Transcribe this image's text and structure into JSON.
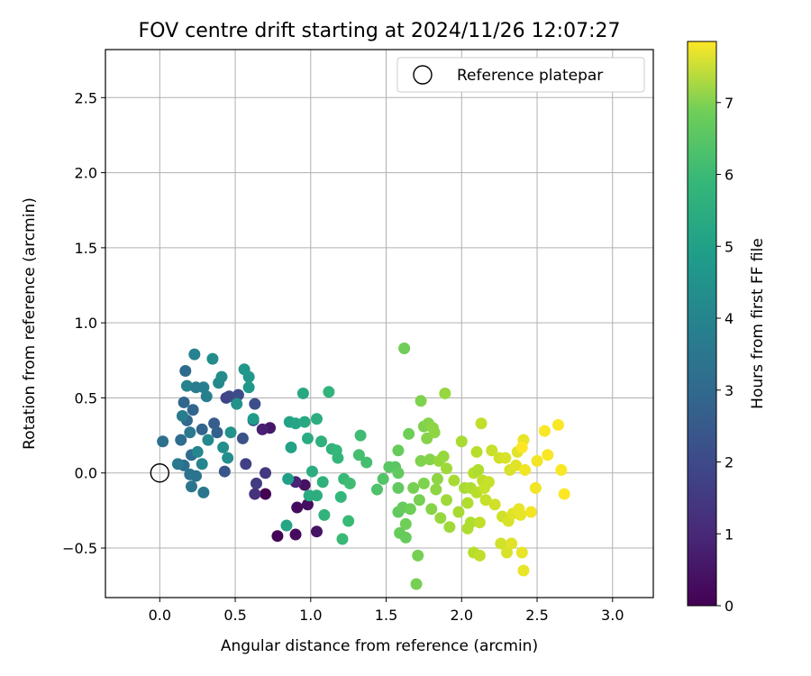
{
  "chart_data": {
    "type": "scatter",
    "title": "FOV centre drift starting at 2024/11/26 12:07:27",
    "xlabel": "Angular distance from reference (arcmin)",
    "ylabel": "Rotation from reference (arcmin)",
    "xlim": [
      -0.36,
      3.27
    ],
    "ylim": [
      -0.83,
      2.82
    ],
    "xticks": [
      0.0,
      0.5,
      1.0,
      1.5,
      2.0,
      2.5,
      3.0
    ],
    "xtick_labels": [
      "0.0",
      "0.5",
      "1.0",
      "1.5",
      "2.0",
      "2.5",
      "3.0"
    ],
    "yticks": [
      -0.5,
      0.0,
      0.5,
      1.0,
      1.5,
      2.0,
      2.5
    ],
    "ytick_labels": [
      "−0.5",
      "0.0",
      "0.5",
      "1.0",
      "1.5",
      "2.0",
      "2.5"
    ],
    "grid": true,
    "legend": {
      "placement": "top-right",
      "entries": [
        "Reference platepar"
      ]
    },
    "reference": {
      "x": 0.0,
      "y": 0.0,
      "label": "Reference platepar"
    },
    "colorbar": {
      "label": "Hours from first FF file",
      "colormap": "viridis",
      "range": [
        0,
        7.85
      ],
      "ticks": [
        0,
        1,
        2,
        3,
        4,
        5,
        6,
        7
      ],
      "tick_labels": [
        "0",
        "1",
        "2",
        "3",
        "4",
        "5",
        "6",
        "7"
      ]
    },
    "points": [
      {
        "x": 0.7,
        "y": -0.14,
        "h": 0.0
      },
      {
        "x": 0.78,
        "y": -0.42,
        "h": 0.1
      },
      {
        "x": 0.9,
        "y": -0.41,
        "h": 0.2
      },
      {
        "x": 0.91,
        "y": -0.23,
        "h": 0.25
      },
      {
        "x": 0.98,
        "y": -0.21,
        "h": 0.3
      },
      {
        "x": 0.96,
        "y": -0.08,
        "h": 0.35
      },
      {
        "x": 1.04,
        "y": -0.39,
        "h": 0.4
      },
      {
        "x": 0.73,
        "y": 0.3,
        "h": 0.5
      },
      {
        "x": 0.68,
        "y": 0.29,
        "h": 0.7
      },
      {
        "x": 0.9,
        "y": -0.06,
        "h": 0.8
      },
      {
        "x": 0.63,
        "y": -0.14,
        "h": 1.1
      },
      {
        "x": 0.7,
        "y": 0.0,
        "h": 1.3
      },
      {
        "x": 0.64,
        "y": -0.07,
        "h": 1.4
      },
      {
        "x": 0.57,
        "y": 0.06,
        "h": 1.5
      },
      {
        "x": 0.44,
        "y": 0.5,
        "h": 1.6
      },
      {
        "x": 0.46,
        "y": 0.51,
        "h": 1.7
      },
      {
        "x": 0.52,
        "y": 0.52,
        "h": 1.8
      },
      {
        "x": 0.63,
        "y": 0.46,
        "h": 1.9
      },
      {
        "x": 0.55,
        "y": 0.23,
        "h": 2.0
      },
      {
        "x": 0.43,
        "y": 0.01,
        "h": 2.1
      },
      {
        "x": 0.62,
        "y": 0.35,
        "h": 2.2
      },
      {
        "x": 0.36,
        "y": 0.33,
        "h": 2.3
      },
      {
        "x": 0.38,
        "y": 0.27,
        "h": 2.4
      },
      {
        "x": 0.28,
        "y": 0.29,
        "h": 2.5
      },
      {
        "x": 0.22,
        "y": 0.42,
        "h": 2.5
      },
      {
        "x": 0.16,
        "y": 0.47,
        "h": 2.6
      },
      {
        "x": 0.17,
        "y": 0.68,
        "h": 2.7
      },
      {
        "x": 0.18,
        "y": 0.35,
        "h": 2.7
      },
      {
        "x": 0.21,
        "y": 0.12,
        "h": 2.8
      },
      {
        "x": 0.14,
        "y": 0.22,
        "h": 2.8
      },
      {
        "x": 0.02,
        "y": 0.21,
        "h": 2.9
      },
      {
        "x": 0.16,
        "y": 0.05,
        "h": 2.9
      },
      {
        "x": 0.2,
        "y": -0.01,
        "h": 3.0
      },
      {
        "x": 0.24,
        "y": -0.02,
        "h": 3.0
      },
      {
        "x": 0.21,
        "y": -0.09,
        "h": 3.1
      },
      {
        "x": 0.29,
        "y": -0.13,
        "h": 3.1
      },
      {
        "x": 0.12,
        "y": 0.06,
        "h": 3.2
      },
      {
        "x": 0.2,
        "y": 0.27,
        "h": 3.2
      },
      {
        "x": 0.15,
        "y": 0.38,
        "h": 3.3
      },
      {
        "x": 0.24,
        "y": 0.57,
        "h": 3.3
      },
      {
        "x": 0.31,
        "y": 0.51,
        "h": 3.4
      },
      {
        "x": 0.29,
        "y": 0.57,
        "h": 3.4
      },
      {
        "x": 0.23,
        "y": 0.79,
        "h": 3.5
      },
      {
        "x": 0.18,
        "y": 0.58,
        "h": 3.5
      },
      {
        "x": 0.28,
        "y": 0.06,
        "h": 3.6
      },
      {
        "x": 0.25,
        "y": 0.14,
        "h": 3.6
      },
      {
        "x": 0.32,
        "y": 0.22,
        "h": 3.7
      },
      {
        "x": 0.39,
        "y": 0.6,
        "h": 3.7
      },
      {
        "x": 0.41,
        "y": 0.64,
        "h": 3.8
      },
      {
        "x": 0.35,
        "y": 0.76,
        "h": 3.8
      },
      {
        "x": 0.42,
        "y": 0.17,
        "h": 3.9
      },
      {
        "x": 0.45,
        "y": 0.1,
        "h": 3.9
      },
      {
        "x": 0.47,
        "y": 0.27,
        "h": 4.0
      },
      {
        "x": 0.51,
        "y": 0.46,
        "h": 4.0
      },
      {
        "x": 0.56,
        "y": 0.69,
        "h": 4.1
      },
      {
        "x": 0.59,
        "y": 0.64,
        "h": 4.1
      },
      {
        "x": 0.59,
        "y": 0.57,
        "h": 4.2
      },
      {
        "x": 0.62,
        "y": 0.36,
        "h": 4.3
      },
      {
        "x": 0.85,
        "y": -0.04,
        "h": 4.4
      },
      {
        "x": 0.87,
        "y": 0.17,
        "h": 4.5
      },
      {
        "x": 0.86,
        "y": 0.34,
        "h": 4.5
      },
      {
        "x": 0.84,
        "y": -0.35,
        "h": 4.6
      },
      {
        "x": 0.9,
        "y": 0.33,
        "h": 4.6
      },
      {
        "x": 0.95,
        "y": 0.53,
        "h": 4.7
      },
      {
        "x": 0.96,
        "y": 0.34,
        "h": 4.7
      },
      {
        "x": 0.98,
        "y": 0.23,
        "h": 4.8
      },
      {
        "x": 0.99,
        "y": -0.15,
        "h": 4.8
      },
      {
        "x": 1.01,
        "y": 0.01,
        "h": 4.9
      },
      {
        "x": 1.04,
        "y": -0.15,
        "h": 4.9
      },
      {
        "x": 1.04,
        "y": 0.36,
        "h": 4.9
      },
      {
        "x": 1.07,
        "y": 0.21,
        "h": 5.0
      },
      {
        "x": 1.08,
        "y": -0.06,
        "h": 5.0
      },
      {
        "x": 1.09,
        "y": -0.28,
        "h": 5.1
      },
      {
        "x": 1.12,
        "y": 0.54,
        "h": 5.1
      },
      {
        "x": 1.14,
        "y": 0.16,
        "h": 5.1
      },
      {
        "x": 1.17,
        "y": 0.15,
        "h": 5.2
      },
      {
        "x": 1.18,
        "y": 0.1,
        "h": 5.2
      },
      {
        "x": 1.2,
        "y": -0.16,
        "h": 5.2
      },
      {
        "x": 1.21,
        "y": -0.44,
        "h": 5.3
      },
      {
        "x": 1.22,
        "y": -0.04,
        "h": 5.3
      },
      {
        "x": 1.25,
        "y": -0.32,
        "h": 5.3
      },
      {
        "x": 1.26,
        "y": -0.07,
        "h": 5.4
      },
      {
        "x": 1.33,
        "y": 0.25,
        "h": 5.4
      },
      {
        "x": 1.32,
        "y": 0.12,
        "h": 5.5
      },
      {
        "x": 1.37,
        "y": 0.07,
        "h": 5.5
      },
      {
        "x": 1.44,
        "y": -0.11,
        "h": 5.6
      },
      {
        "x": 1.48,
        "y": -0.04,
        "h": 5.7
      },
      {
        "x": 1.52,
        "y": 0.04,
        "h": 5.8
      },
      {
        "x": 1.56,
        "y": 0.04,
        "h": 5.8
      },
      {
        "x": 1.58,
        "y": 0.0,
        "h": 5.9
      },
      {
        "x": 1.58,
        "y": -0.1,
        "h": 5.9
      },
      {
        "x": 1.58,
        "y": -0.26,
        "h": 5.9
      },
      {
        "x": 1.58,
        "y": 0.15,
        "h": 6.0
      },
      {
        "x": 1.59,
        "y": -0.4,
        "h": 6.0
      },
      {
        "x": 1.61,
        "y": -0.23,
        "h": 6.0
      },
      {
        "x": 1.63,
        "y": -0.43,
        "h": 6.0
      },
      {
        "x": 1.63,
        "y": -0.34,
        "h": 6.1
      },
      {
        "x": 1.62,
        "y": 0.83,
        "h": 6.1
      },
      {
        "x": 1.65,
        "y": 0.26,
        "h": 6.1
      },
      {
        "x": 1.66,
        "y": -0.24,
        "h": 6.1
      },
      {
        "x": 1.68,
        "y": -0.1,
        "h": 6.2
      },
      {
        "x": 1.7,
        "y": -0.74,
        "h": 6.2
      },
      {
        "x": 1.71,
        "y": -0.55,
        "h": 6.2
      },
      {
        "x": 1.72,
        "y": -0.18,
        "h": 6.2
      },
      {
        "x": 1.73,
        "y": 0.48,
        "h": 6.3
      },
      {
        "x": 1.73,
        "y": 0.08,
        "h": 6.3
      },
      {
        "x": 1.75,
        "y": 0.31,
        "h": 6.3
      },
      {
        "x": 1.75,
        "y": -0.07,
        "h": 6.3
      },
      {
        "x": 1.77,
        "y": 0.23,
        "h": 6.4
      },
      {
        "x": 1.78,
        "y": 0.33,
        "h": 6.4
      },
      {
        "x": 1.79,
        "y": 0.09,
        "h": 6.4
      },
      {
        "x": 1.8,
        "y": -0.24,
        "h": 6.4
      },
      {
        "x": 1.81,
        "y": 0.3,
        "h": 6.5
      },
      {
        "x": 1.82,
        "y": 0.27,
        "h": 6.5
      },
      {
        "x": 1.83,
        "y": -0.11,
        "h": 6.5
      },
      {
        "x": 1.84,
        "y": -0.04,
        "h": 6.5
      },
      {
        "x": 1.85,
        "y": 0.08,
        "h": 6.6
      },
      {
        "x": 1.86,
        "y": -0.3,
        "h": 6.6
      },
      {
        "x": 1.88,
        "y": 0.11,
        "h": 6.6
      },
      {
        "x": 1.89,
        "y": 0.53,
        "h": 6.6
      },
      {
        "x": 1.9,
        "y": -0.18,
        "h": 6.7
      },
      {
        "x": 1.9,
        "y": 0.03,
        "h": 6.7
      },
      {
        "x": 1.92,
        "y": -0.36,
        "h": 6.7
      },
      {
        "x": 1.95,
        "y": -0.05,
        "h": 6.8
      },
      {
        "x": 1.98,
        "y": -0.26,
        "h": 6.8
      },
      {
        "x": 2.0,
        "y": 0.21,
        "h": 6.8
      },
      {
        "x": 2.02,
        "y": -0.1,
        "h": 6.8
      },
      {
        "x": 2.04,
        "y": -0.2,
        "h": 6.9
      },
      {
        "x": 2.04,
        "y": -0.37,
        "h": 6.9
      },
      {
        "x": 2.06,
        "y": -0.33,
        "h": 6.9
      },
      {
        "x": 2.06,
        "y": -0.1,
        "h": 6.9
      },
      {
        "x": 2.08,
        "y": 0.0,
        "h": 7.0
      },
      {
        "x": 2.08,
        "y": -0.53,
        "h": 7.0
      },
      {
        "x": 2.1,
        "y": 0.14,
        "h": 7.0
      },
      {
        "x": 2.1,
        "y": -0.13,
        "h": 7.0
      },
      {
        "x": 2.12,
        "y": -0.55,
        "h": 7.1
      },
      {
        "x": 2.12,
        "y": -0.33,
        "h": 7.1
      },
      {
        "x": 2.13,
        "y": 0.33,
        "h": 7.1
      },
      {
        "x": 2.14,
        "y": -0.05,
        "h": 7.1
      },
      {
        "x": 2.15,
        "y": -0.1,
        "h": 7.2
      },
      {
        "x": 2.16,
        "y": -0.18,
        "h": 7.2
      },
      {
        "x": 2.18,
        "y": -0.06,
        "h": 7.2
      },
      {
        "x": 2.2,
        "y": 0.15,
        "h": 7.2
      },
      {
        "x": 2.22,
        "y": -0.21,
        "h": 7.3
      },
      {
        "x": 2.25,
        "y": 0.1,
        "h": 7.3
      },
      {
        "x": 2.26,
        "y": -0.47,
        "h": 7.3
      },
      {
        "x": 2.27,
        "y": -0.29,
        "h": 7.3
      },
      {
        "x": 2.29,
        "y": 0.1,
        "h": 7.4
      },
      {
        "x": 2.3,
        "y": -0.53,
        "h": 7.4
      },
      {
        "x": 2.31,
        "y": -0.32,
        "h": 7.4
      },
      {
        "x": 2.32,
        "y": 0.02,
        "h": 7.4
      },
      {
        "x": 2.33,
        "y": -0.47,
        "h": 7.5
      },
      {
        "x": 2.34,
        "y": -0.27,
        "h": 7.5
      },
      {
        "x": 2.36,
        "y": 0.05,
        "h": 7.5
      },
      {
        "x": 2.37,
        "y": 0.14,
        "h": 7.5
      },
      {
        "x": 2.38,
        "y": -0.24,
        "h": 7.6
      },
      {
        "x": 2.39,
        "y": -0.28,
        "h": 7.6
      },
      {
        "x": 2.4,
        "y": -0.53,
        "h": 7.6
      },
      {
        "x": 2.41,
        "y": -0.65,
        "h": 7.6
      },
      {
        "x": 2.41,
        "y": 0.22,
        "h": 7.6
      },
      {
        "x": 2.42,
        "y": 0.02,
        "h": 7.7
      },
      {
        "x": 2.46,
        "y": -0.26,
        "h": 7.7
      },
      {
        "x": 2.49,
        "y": -0.1,
        "h": 7.7
      },
      {
        "x": 2.5,
        "y": 0.08,
        "h": 7.7
      },
      {
        "x": 2.57,
        "y": 0.12,
        "h": 7.8
      },
      {
        "x": 2.55,
        "y": 0.28,
        "h": 7.8
      },
      {
        "x": 2.64,
        "y": 0.32,
        "h": 7.8
      },
      {
        "x": 2.66,
        "y": 0.02,
        "h": 7.8
      },
      {
        "x": 2.68,
        "y": -0.14,
        "h": 7.85
      },
      {
        "x": 2.4,
        "y": 0.17,
        "h": 7.85
      },
      {
        "x": 2.11,
        "y": 0.02,
        "h": 6.9
      }
    ]
  }
}
